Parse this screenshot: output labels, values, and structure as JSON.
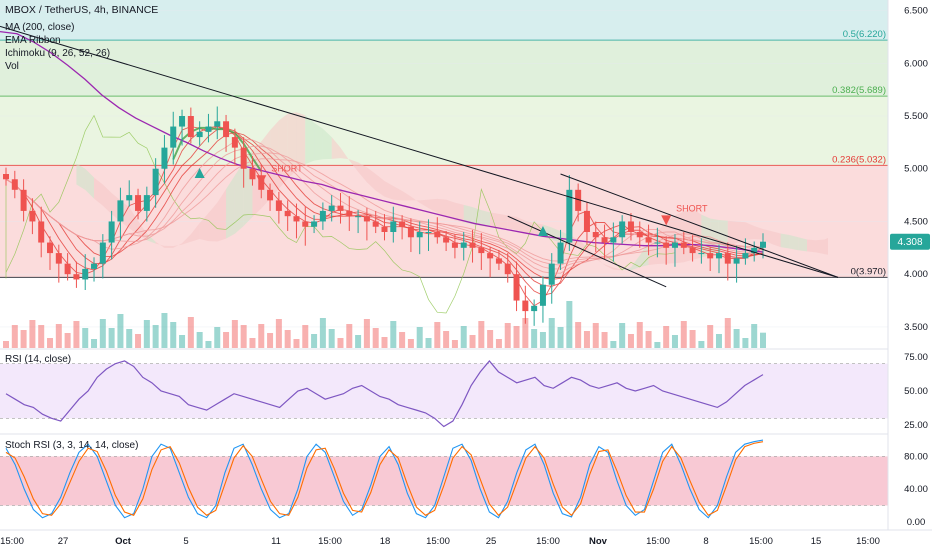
{
  "header": {
    "symbol_title": "MBOX / TetherUS, 4h, BINANCE",
    "indicators": [
      "MA (200, close)",
      "EMA Ribbon",
      "Ichimoku (9, 26, 52, 26)",
      "Vol"
    ]
  },
  "price_label": {
    "value": "4.308",
    "color": "#26a69a"
  },
  "sub_panels": {
    "rsi_title": "RSI (14, close)",
    "stoch_title": "Stoch RSI (3, 3, 14, 14, close)"
  },
  "annotations": {
    "short_label": "SHORT",
    "signals": [
      {
        "type": "buy",
        "x_label": "Oct"
      },
      {
        "type": "sell",
        "text": "SHORT"
      },
      {
        "type": "buy",
        "x_label": "1"
      },
      {
        "type": "sell",
        "text": "SHORT"
      }
    ]
  },
  "colors": {
    "candle_up": "#26a69a",
    "candle_down": "#ef5350",
    "ma200": "#9c27b0",
    "ribbon_red": "#e53935",
    "ribbon_green": "#43a047",
    "cloud_red": "#f6c6c6",
    "cloud_green": "#c8e6c9",
    "rsi_line": "#7e57c2",
    "rsi_band": "#f3e8fb",
    "stoch_band": "#f8c9d4",
    "stoch_k": "#2196f3",
    "stoch_d": "#ff6d00",
    "trendline": "#131722"
  },
  "chart_data": [
    {
      "type": "candlestick",
      "title": "MBOX / TetherUS, 4h, BINANCE",
      "y_axis": {
        "ticks": [
          "6.500",
          "6.000",
          "5.500",
          "5.000",
          "4.500",
          "4.000",
          "3.500"
        ],
        "range": [
          3.3,
          6.6
        ]
      },
      "x_axis": {
        "ticks": [
          "15:00",
          "27",
          "Oct",
          "5",
          "11",
          "15:00",
          "18",
          "15:00",
          "25",
          "15:00",
          "Nov",
          "15:00",
          "8",
          "15:00",
          "15",
          "15:00"
        ]
      },
      "last_price": 4.308,
      "fibonacci_levels": [
        {
          "ratio": "0.5",
          "price": 6.22,
          "label": "0.5(6.220)",
          "color": "#26a69a"
        },
        {
          "ratio": "0.382",
          "price": 5.689,
          "label": "0.382(5.689)",
          "color": "#4caf50"
        },
        {
          "ratio": "0.236",
          "price": 5.032,
          "label": "0.236(5.032)",
          "color": "#e53935"
        },
        {
          "ratio": "0",
          "price": 3.97,
          "label": "0(3.970)",
          "color": "#131722"
        }
      ],
      "close_series_approx": [
        4.9,
        4.8,
        4.6,
        4.5,
        4.3,
        4.2,
        4.1,
        4.0,
        3.95,
        4.05,
        4.1,
        4.3,
        4.5,
        4.7,
        4.75,
        4.6,
        4.75,
        5.0,
        5.2,
        5.4,
        5.5,
        5.3,
        5.35,
        5.4,
        5.45,
        5.3,
        5.2,
        5.0,
        4.9,
        4.8,
        4.7,
        4.6,
        4.55,
        4.5,
        4.45,
        4.5,
        4.6,
        4.65,
        4.6,
        4.55,
        4.55,
        4.5,
        4.45,
        4.4,
        4.5,
        4.45,
        4.35,
        4.4,
        4.4,
        4.35,
        4.3,
        4.25,
        4.3,
        4.25,
        4.2,
        4.15,
        4.1,
        4.0,
        3.75,
        3.65,
        3.7,
        3.9,
        4.1,
        4.3,
        4.8,
        4.6,
        4.4,
        4.35,
        4.3,
        4.35,
        4.5,
        4.4,
        4.35,
        4.3,
        4.3,
        4.25,
        4.3,
        4.25,
        4.2,
        4.2,
        4.15,
        4.2,
        4.1,
        4.15,
        4.2,
        4.25,
        4.308
      ],
      "ma200_approx": [
        6.3,
        6.28,
        6.2,
        6.1,
        5.98,
        5.85,
        5.7,
        5.58,
        5.48,
        5.4,
        5.32,
        5.25,
        5.17,
        5.1,
        5.04,
        5.0,
        4.96,
        4.92,
        4.88,
        4.85,
        4.8,
        4.76,
        4.72,
        4.68,
        4.64,
        4.6,
        4.56,
        4.52,
        4.48,
        4.45,
        4.42,
        4.39,
        4.36,
        4.34,
        4.32,
        4.3,
        4.29,
        4.28,
        4.27,
        4.27,
        4.28,
        4.28,
        4.27,
        4.25,
        4.23,
        4.21
      ],
      "descending_trendlines": [
        {
          "from": {
            "x_label": "15:00 (start)",
            "price": 6.35
          },
          "to": {
            "x_label": "15",
            "price": 3.97
          }
        },
        {
          "from": {
            "x_label": "1",
            "price": 4.95
          },
          "to": {
            "x_label": "15",
            "price": 3.97
          }
        },
        {
          "from": {
            "x_label": "25",
            "price": 4.55
          },
          "to": {
            "x_label": "8",
            "price": 3.88
          }
        }
      ]
    },
    {
      "type": "line",
      "title": "RSI (14, close)",
      "y_axis": {
        "ticks": [
          "75.00",
          "50.00",
          "25.00"
        ],
        "range": [
          20,
          80
        ]
      },
      "band": [
        30,
        70
      ],
      "values": [
        48,
        44,
        40,
        38,
        33,
        30,
        28,
        36,
        44,
        50,
        60,
        66,
        70,
        72,
        68,
        60,
        56,
        50,
        48,
        46,
        40,
        38,
        36,
        40,
        44,
        48,
        46,
        44,
        42,
        40,
        38,
        44,
        50,
        52,
        48,
        44,
        46,
        48,
        52,
        54,
        50,
        46,
        44,
        40,
        38,
        36,
        34,
        30,
        24,
        28,
        40,
        54,
        64,
        72,
        64,
        60,
        56,
        58,
        60,
        54,
        52,
        56,
        60,
        58,
        54,
        52,
        54,
        56,
        52,
        50,
        52,
        54,
        50,
        48,
        46,
        44,
        42,
        40,
        38,
        42,
        48,
        54,
        58,
        62
      ]
    },
    {
      "type": "line",
      "title": "Stoch RSI (3, 3, 14, 14, close)",
      "y_axis": {
        "ticks": [
          "80.00",
          "40.00",
          "0.00"
        ],
        "range": [
          -10,
          105
        ]
      },
      "band": [
        20,
        80
      ],
      "series": [
        {
          "name": "K",
          "values": [
            90,
            70,
            40,
            15,
            5,
            10,
            30,
            60,
            85,
            95,
            80,
            50,
            20,
            5,
            10,
            40,
            80,
            95,
            90,
            60,
            30,
            10,
            5,
            20,
            60,
            90,
            95,
            70,
            40,
            15,
            5,
            10,
            40,
            80,
            95,
            85,
            55,
            25,
            8,
            15,
            45,
            80,
            92,
            70,
            35,
            10,
            5,
            20,
            55,
            90,
            95,
            75,
            40,
            12,
            5,
            25,
            60,
            88,
            95,
            70,
            35,
            10,
            6,
            30,
            70,
            92,
            85,
            50,
            20,
            8,
            15,
            50,
            85,
            95,
            70,
            40,
            15,
            5,
            20,
            55,
            85,
            95,
            98,
            100
          ]
        },
        {
          "name": "D",
          "values": [
            85,
            78,
            55,
            28,
            10,
            8,
            22,
            48,
            74,
            90,
            86,
            62,
            32,
            12,
            8,
            28,
            64,
            88,
            92,
            72,
            42,
            18,
            8,
            14,
            46,
            78,
            93,
            80,
            52,
            25,
            10,
            8,
            30,
            66,
            88,
            90,
            65,
            35,
            14,
            12,
            36,
            70,
            88,
            78,
            46,
            18,
            8,
            14,
            44,
            78,
            92,
            82,
            52,
            22,
            8,
            18,
            48,
            78,
            92,
            78,
            46,
            18,
            8,
            22,
            58,
            86,
            88,
            62,
            32,
            12,
            12,
            40,
            74,
            92,
            78,
            50,
            24,
            8,
            14,
            44,
            76,
            92,
            96,
            98
          ]
        }
      ]
    }
  ]
}
